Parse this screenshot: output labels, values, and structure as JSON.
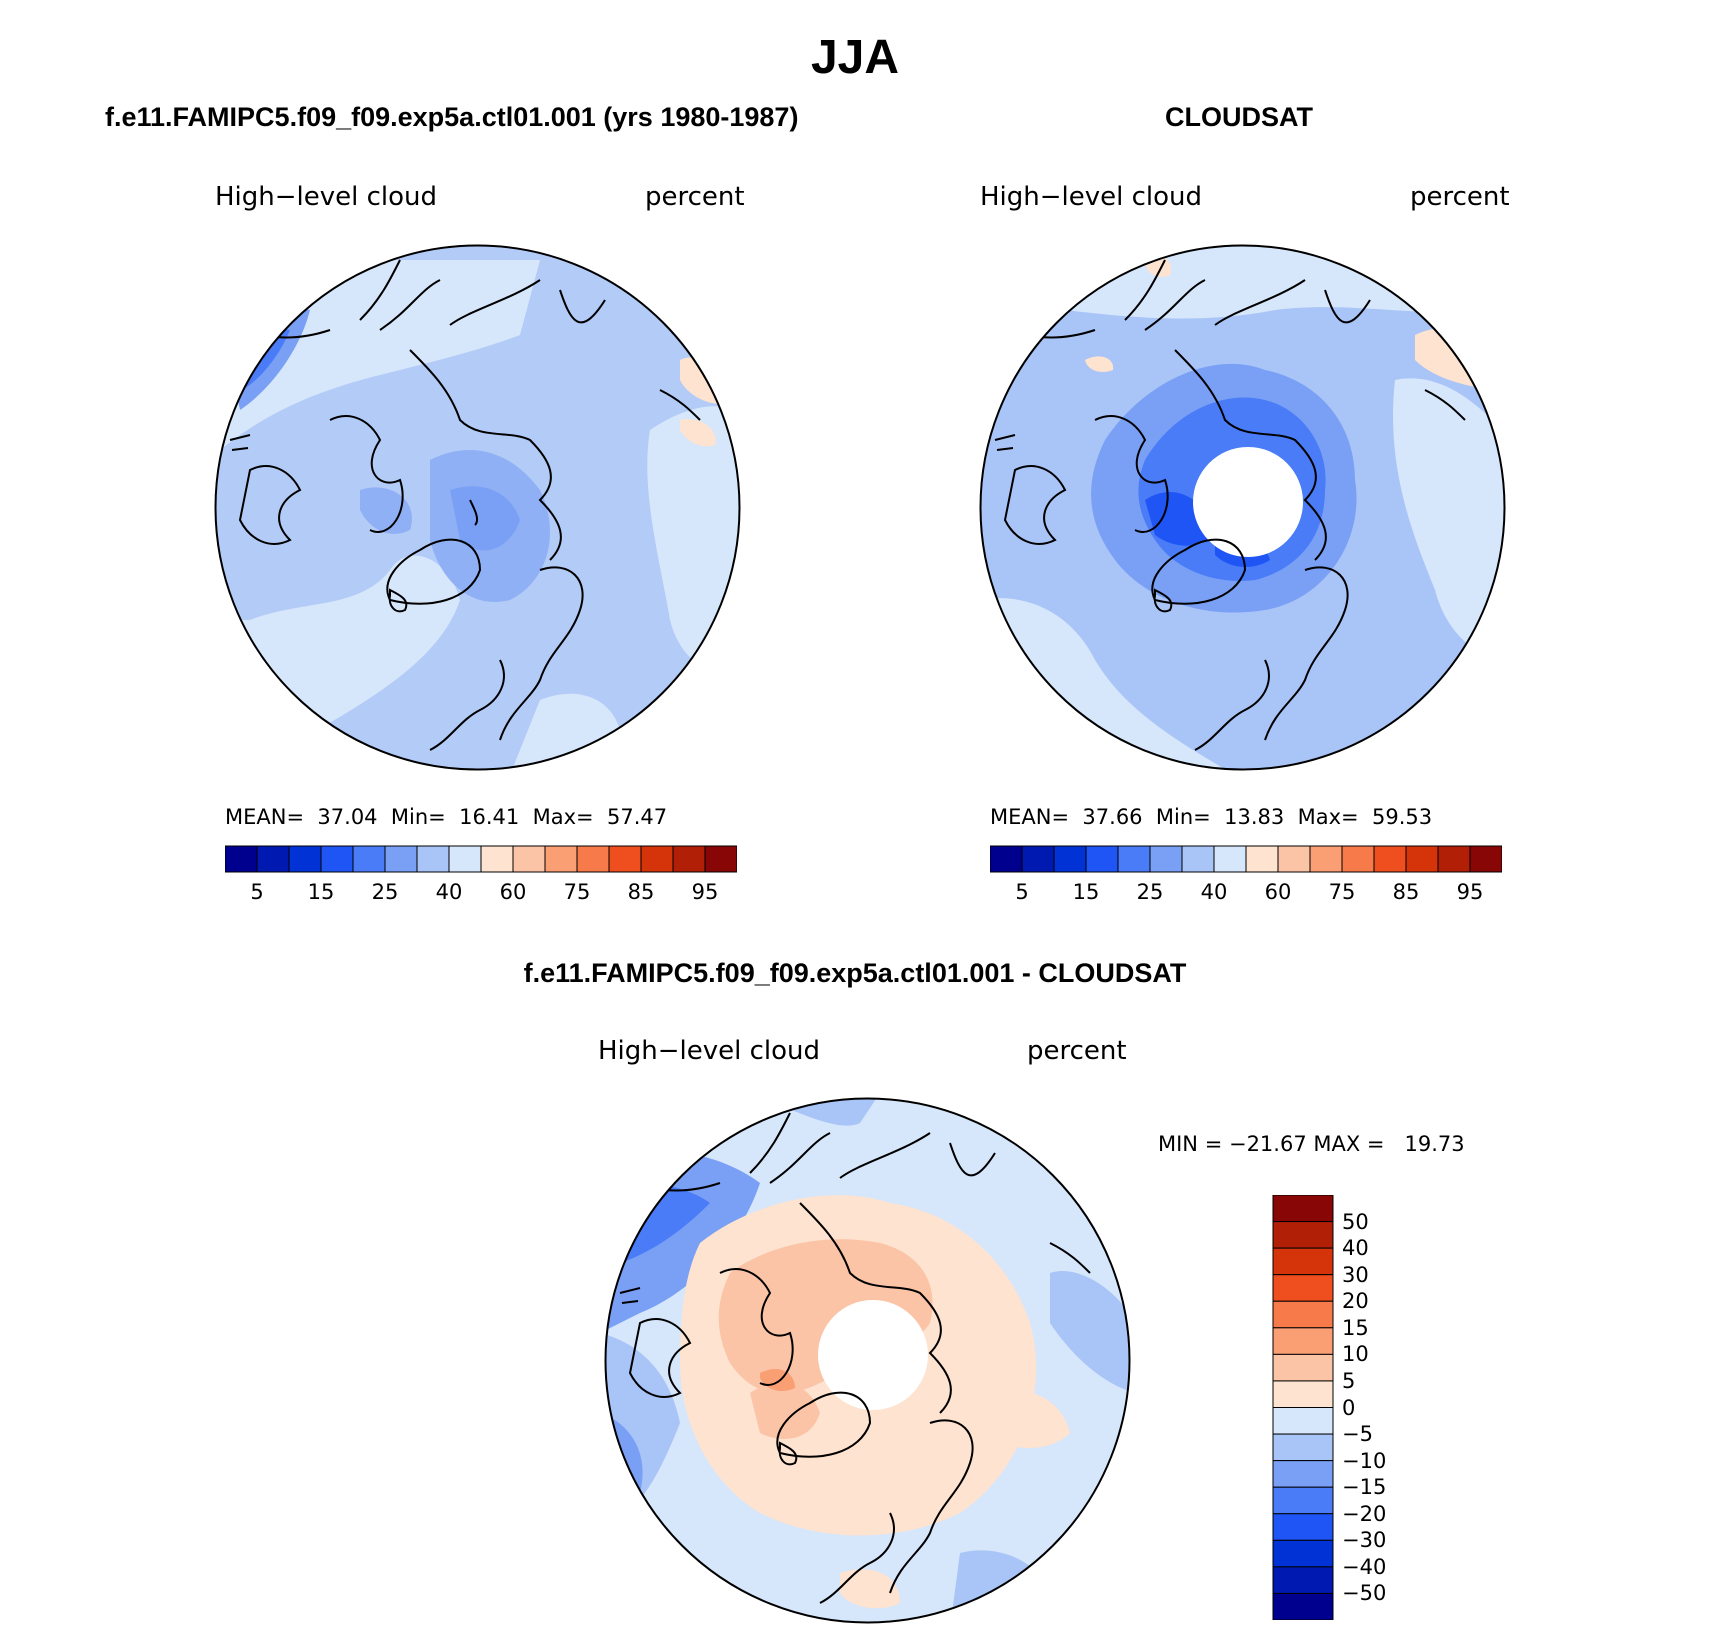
{
  "title": "JJA",
  "panels": [
    {
      "id": "model",
      "title": "f.e11.FAMIPC5.f09_f09.exp5a.ctl01.001 (yrs 1980-1987)",
      "variable": "High−level cloud",
      "units": "percent",
      "stats": {
        "mean_label": "MEAN=",
        "mean": "37.04",
        "min_label": "Min=",
        "min": "16.41",
        "max_label": "Max=",
        "max": "57.47"
      }
    },
    {
      "id": "obs",
      "title": "CLOUDSAT",
      "variable": "High−level cloud",
      "units": "percent",
      "stats": {
        "mean_label": "MEAN=",
        "mean": "37.66",
        "min_label": "Min=",
        "min": "13.83",
        "max_label": "Max=",
        "max": "59.53"
      }
    },
    {
      "id": "diff",
      "title": "f.e11.FAMIPC5.f09_f09.exp5a.ctl01.001 - CLOUDSAT",
      "variable": "High−level cloud",
      "units": "percent",
      "stats_text": "MIN = −21.67 MAX =   19.73"
    }
  ],
  "colorbar_abs": {
    "colors": [
      "#00008f",
      "#0019b0",
      "#0032d6",
      "#2055f5",
      "#4a7cf7",
      "#7aa0f5",
      "#a9c4f7",
      "#d6e6fb",
      "#fde3d0",
      "#fcc4a6",
      "#fa9e74",
      "#f77a4a",
      "#ef4e1f",
      "#d5330a",
      "#b01f06",
      "#880606"
    ],
    "tick_labels": [
      "5",
      "15",
      "25",
      "40",
      "60",
      "75",
      "85",
      "95"
    ]
  },
  "colorbar_diff": {
    "colors": [
      "#880606",
      "#b01f06",
      "#d5330a",
      "#ef4e1f",
      "#f77a4a",
      "#fa9e74",
      "#fcc4a6",
      "#fde3d0",
      "#d6e6fb",
      "#a9c4f7",
      "#7aa0f5",
      "#4a7cf7",
      "#2055f5",
      "#0032d6",
      "#0019b0",
      "#00008f"
    ],
    "tick_labels": [
      "50",
      "40",
      "30",
      "20",
      "15",
      "10",
      "5",
      "0",
      "−5",
      "−10",
      "−15",
      "−20",
      "−30",
      "−40",
      "−50"
    ]
  },
  "map_fill": {
    "model_base": "#b3cbf7",
    "obs_base": "#a9c4f7",
    "diff_base": "#fde3d0",
    "missing": "#ffffff"
  }
}
